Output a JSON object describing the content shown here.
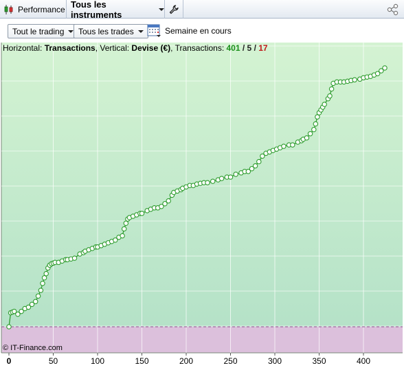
{
  "toolbar": {
    "performance_label": "Performance",
    "instruments_label": "Tous les instruments"
  },
  "filters": {
    "trading_label": "Tout le trading",
    "trades_label": "Tous les trades",
    "period_label": "Semaine en cours"
  },
  "legend": {
    "h_prefix": "Horizontal: ",
    "h_value": "Transactions",
    "v_prefix": ", Vertical: ",
    "v_value": "Devise (€)",
    "t_prefix": ", Transactions: ",
    "count_total": "401",
    "sep1": " / ",
    "count_mid": "5",
    "sep2": " / ",
    "count_red": "17"
  },
  "credit": "© IT-Finance.com",
  "colors": {
    "profit_zone": "#cdeed0",
    "loss_zone": "#dcc0dc",
    "line": "#2e9c2e",
    "marker_fill": "#ffffff"
  },
  "chart_data": {
    "type": "line",
    "xlabel": "",
    "ylabel": "",
    "x_ticks": [
      0,
      50,
      100,
      150,
      200,
      250,
      300,
      350,
      400
    ],
    "xlim": [
      0,
      430
    ],
    "y_baseline": 0,
    "y_range_px_hint": "unlabeled",
    "series": [
      {
        "x": [
          0,
          2,
          4,
          6,
          10,
          14,
          18,
          22,
          26,
          30,
          33,
          36,
          38,
          40,
          42,
          44,
          46,
          48,
          50,
          52,
          56,
          60,
          64,
          66,
          70,
          74,
          80,
          84,
          86,
          90,
          94,
          98,
          100,
          104,
          108,
          112,
          116,
          120,
          124,
          128,
          130,
          132,
          134,
          136,
          140,
          144,
          148,
          150,
          156,
          160,
          164,
          168,
          172,
          176,
          180,
          184,
          186,
          190,
          194,
          196,
          200,
          204,
          208,
          212,
          216,
          220,
          224,
          230,
          236,
          240,
          246,
          250,
          256,
          262,
          266,
          270,
          274,
          278,
          282,
          286,
          290,
          294,
          298,
          302,
          306,
          310,
          316,
          320,
          326,
          330,
          332,
          336,
          340,
          344,
          346,
          348,
          350,
          352,
          354,
          356,
          360,
          362,
          364,
          366,
          370,
          374,
          378,
          382,
          386,
          390,
          396,
          400,
          404,
          408,
          412,
          416,
          420,
          424
        ],
        "values": [
          0,
          20,
          21,
          22,
          18,
          22,
          26,
          28,
          32,
          36,
          44,
          52,
          62,
          70,
          76,
          84,
          88,
          90,
          91,
          92,
          92,
          94,
          96,
          96,
          97,
          98,
          104,
          106,
          108,
          110,
          112,
          114,
          114,
          116,
          118,
          120,
          122,
          124,
          128,
          130,
          140,
          148,
          154,
          156,
          158,
          160,
          162,
          162,
          166,
          168,
          170,
          170,
          172,
          176,
          180,
          188,
          192,
          194,
          196,
          198,
          200,
          202,
          202,
          204,
          205,
          206,
          206,
          208,
          210,
          212,
          214,
          214,
          218,
          220,
          222,
          222,
          226,
          230,
          236,
          244,
          248,
          250,
          252,
          254,
          256,
          258,
          260,
          260,
          264,
          266,
          268,
          270,
          276,
          282,
          290,
          300,
          306,
          310,
          314,
          318,
          326,
          330,
          340,
          348,
          350,
          350,
          350,
          351,
          352,
          353,
          354,
          356,
          357,
          358,
          360,
          362,
          366,
          370
        ]
      }
    ]
  }
}
